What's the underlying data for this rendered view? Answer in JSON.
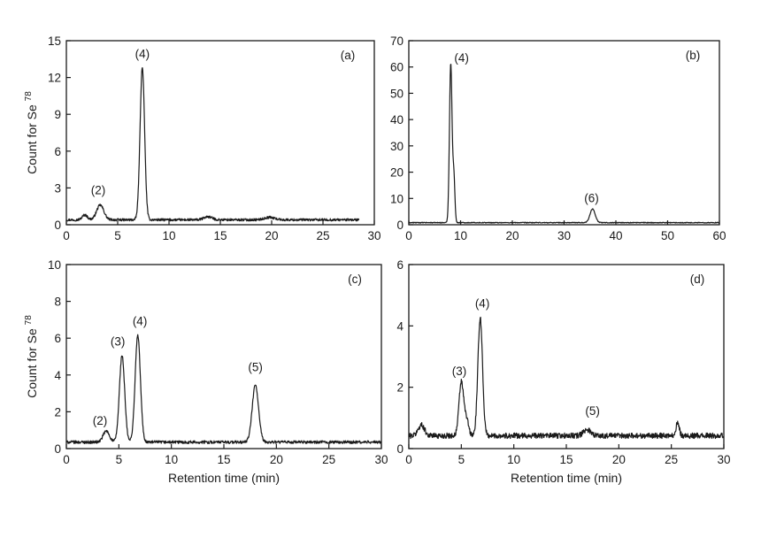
{
  "chart_data": [
    {
      "type": "line",
      "panel_label": "(a)",
      "ylabel": "Count for Se",
      "ylabel_sup": "78",
      "xlabel": "",
      "xlim": [
        0,
        30
      ],
      "ylim": [
        0,
        15
      ],
      "x_ticks": [
        0,
        5,
        10,
        15,
        20,
        25,
        30
      ],
      "y_ticks": [
        0,
        3,
        6,
        9,
        12,
        15
      ],
      "baseline": 0.4,
      "trace_end": 28.5,
      "noise": 0.1,
      "peaks": [
        {
          "x": 1.8,
          "height": 0.4,
          "width": 0.25
        },
        {
          "x": 3.3,
          "height": 1.2,
          "width": 0.35
        },
        {
          "x": 7.4,
          "height": 12.4,
          "width": 0.22
        },
        {
          "x": 13.8,
          "height": 0.25,
          "width": 0.4
        },
        {
          "x": 19.8,
          "height": 0.2,
          "width": 0.5
        }
      ],
      "peak_labels": [
        {
          "text": "(2)",
          "x": 3.1,
          "y": 2.5
        },
        {
          "text": "(4)",
          "x": 7.4,
          "y": 13.6
        }
      ],
      "grid": false
    },
    {
      "type": "line",
      "panel_label": "(b)",
      "ylabel": "",
      "xlabel": "",
      "xlim": [
        0,
        60
      ],
      "ylim": [
        0,
        70
      ],
      "x_ticks": [
        0,
        10,
        20,
        30,
        40,
        50,
        60
      ],
      "y_ticks": [
        0,
        10,
        20,
        30,
        40,
        50,
        60,
        70
      ],
      "baseline": 0.8,
      "trace_end": 60,
      "noise": 0.15,
      "peaks": [
        {
          "x": 8.1,
          "height": 60.5,
          "width": 0.25
        },
        {
          "x": 8.7,
          "height": 17.5,
          "width": 0.2
        },
        {
          "x": 35.5,
          "height": 5.2,
          "width": 0.5
        }
      ],
      "peak_labels": [
        {
          "text": "(4)",
          "x": 10.2,
          "y": 62
        },
        {
          "text": "(6)",
          "x": 35.3,
          "y": 8.5
        }
      ],
      "grid": false
    },
    {
      "type": "line",
      "panel_label": "(c)",
      "ylabel": "Count for Se",
      "ylabel_sup": "78",
      "xlabel": "Retention time (min)",
      "xlim": [
        0,
        30
      ],
      "ylim": [
        0,
        10
      ],
      "x_ticks": [
        0,
        5,
        10,
        15,
        20,
        25,
        30
      ],
      "y_ticks": [
        0,
        2,
        4,
        6,
        8,
        10
      ],
      "baseline": 0.35,
      "trace_end": 30,
      "noise": 0.08,
      "peaks": [
        {
          "x": 3.8,
          "height": 0.6,
          "width": 0.3
        },
        {
          "x": 5.3,
          "height": 4.7,
          "width": 0.25
        },
        {
          "x": 6.8,
          "height": 5.8,
          "width": 0.25
        },
        {
          "x": 18.0,
          "height": 3.1,
          "width": 0.3
        }
      ],
      "peak_labels": [
        {
          "text": "(2)",
          "x": 3.2,
          "y": 1.3
        },
        {
          "text": "(3)",
          "x": 4.9,
          "y": 5.6
        },
        {
          "text": "(4)",
          "x": 7.0,
          "y": 6.7
        },
        {
          "text": "(5)",
          "x": 18.0,
          "y": 4.2
        }
      ],
      "grid": false
    },
    {
      "type": "line",
      "panel_label": "(d)",
      "ylabel": "",
      "xlabel": "Retention time (min)",
      "xlim": [
        0,
        30
      ],
      "ylim": [
        0,
        6
      ],
      "x_ticks": [
        0,
        5,
        10,
        15,
        20,
        25,
        30
      ],
      "y_ticks": [
        0,
        2,
        4,
        6
      ],
      "baseline": 0.42,
      "trace_end": 30,
      "noise": 0.09,
      "peaks": [
        {
          "x": 1.2,
          "height": 0.35,
          "width": 0.3
        },
        {
          "x": 5.0,
          "height": 1.75,
          "width": 0.22
        },
        {
          "x": 5.5,
          "height": 0.5,
          "width": 0.2
        },
        {
          "x": 6.8,
          "height": 3.85,
          "width": 0.22
        },
        {
          "x": 17.0,
          "height": 0.2,
          "width": 0.35
        },
        {
          "x": 25.6,
          "height": 0.45,
          "width": 0.15
        }
      ],
      "peak_labels": [
        {
          "text": "(3)",
          "x": 4.8,
          "y": 2.4
        },
        {
          "text": "(4)",
          "x": 7.0,
          "y": 4.6
        },
        {
          "text": "(5)",
          "x": 17.5,
          "y": 1.1
        }
      ],
      "grid": false
    }
  ]
}
